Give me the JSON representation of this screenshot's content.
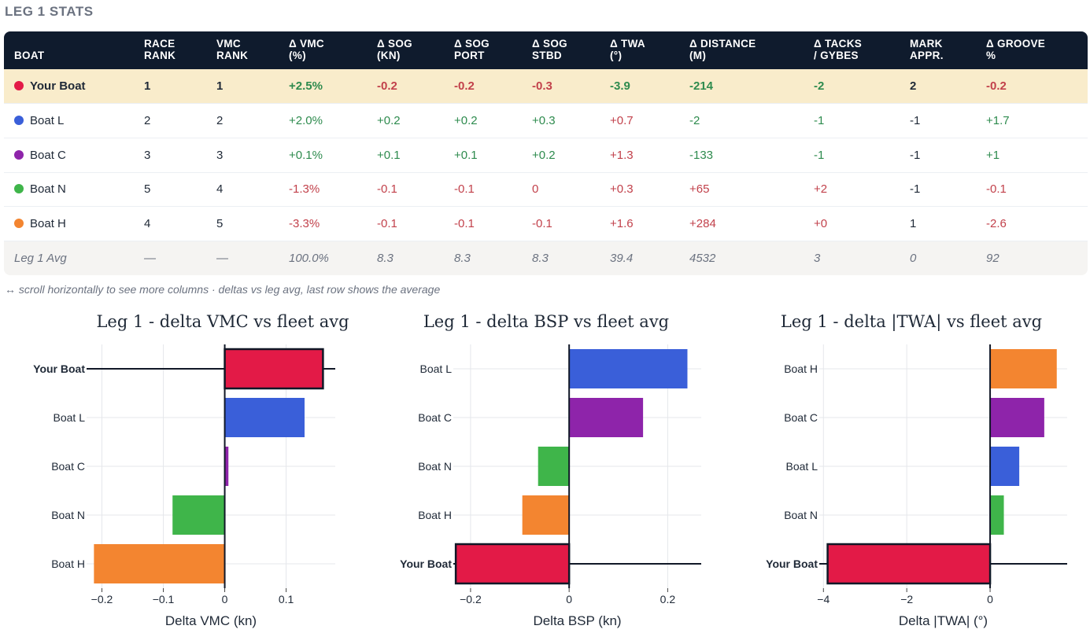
{
  "section_title": "LEG 1 STATS",
  "table": {
    "columns": [
      "BOAT",
      "RACE\nRANK",
      "VMC\nRANK",
      "Δ VMC\n(%)",
      "Δ SOG\n(KN)",
      "Δ SOG\nPORT",
      "Δ SOG\nSTBD",
      "Δ TWA\n(°)",
      "Δ DISTANCE\n(M)",
      "Δ TACKS\n/ GYBES",
      "MARK\nAPPR.",
      "Δ GROOVE\n%"
    ],
    "rows": [
      {
        "boat": "Your Boat",
        "color": "#e31a47",
        "highlight": true,
        "cells": [
          [
            "1",
            "neu"
          ],
          [
            "1",
            "neu"
          ],
          [
            "+2.5%",
            "pos"
          ],
          [
            "-0.2",
            "neg"
          ],
          [
            "-0.2",
            "neg"
          ],
          [
            "-0.3",
            "neg"
          ],
          [
            "-3.9",
            "pos"
          ],
          [
            "-214",
            "pos"
          ],
          [
            "-2",
            "pos"
          ],
          [
            "2",
            "neu"
          ],
          [
            "-0.2",
            "neg"
          ]
        ]
      },
      {
        "boat": "Boat L",
        "color": "#3a5fd9",
        "highlight": false,
        "cells": [
          [
            "2",
            "neu"
          ],
          [
            "2",
            "neu"
          ],
          [
            "+2.0%",
            "pos"
          ],
          [
            "+0.2",
            "pos"
          ],
          [
            "+0.2",
            "pos"
          ],
          [
            "+0.3",
            "pos"
          ],
          [
            "+0.7",
            "neg"
          ],
          [
            "-2",
            "pos"
          ],
          [
            "-1",
            "pos"
          ],
          [
            "-1",
            "neu"
          ],
          [
            "+1.7",
            "pos"
          ]
        ]
      },
      {
        "boat": "Boat C",
        "color": "#8e24aa",
        "highlight": false,
        "cells": [
          [
            "3",
            "neu"
          ],
          [
            "3",
            "neu"
          ],
          [
            "+0.1%",
            "pos"
          ],
          [
            "+0.1",
            "pos"
          ],
          [
            "+0.1",
            "pos"
          ],
          [
            "+0.2",
            "pos"
          ],
          [
            "+1.3",
            "neg"
          ],
          [
            "-133",
            "pos"
          ],
          [
            "-1",
            "pos"
          ],
          [
            "-1",
            "neu"
          ],
          [
            "+1",
            "pos"
          ]
        ]
      },
      {
        "boat": "Boat N",
        "color": "#3fb54a",
        "highlight": false,
        "cells": [
          [
            "5",
            "neu"
          ],
          [
            "4",
            "neu"
          ],
          [
            "-1.3%",
            "neg"
          ],
          [
            "-0.1",
            "neg"
          ],
          [
            "-0.1",
            "neg"
          ],
          [
            "0",
            "neg"
          ],
          [
            "+0.3",
            "neg"
          ],
          [
            "+65",
            "neg"
          ],
          [
            "+2",
            "neg"
          ],
          [
            "-1",
            "neu"
          ],
          [
            "-0.1",
            "neg"
          ]
        ]
      },
      {
        "boat": "Boat H",
        "color": "#f38530",
        "highlight": false,
        "cells": [
          [
            "4",
            "neu"
          ],
          [
            "5",
            "neu"
          ],
          [
            "-3.3%",
            "neg"
          ],
          [
            "-0.1",
            "neg"
          ],
          [
            "-0.1",
            "neg"
          ],
          [
            "-0.1",
            "neg"
          ],
          [
            "+1.6",
            "neg"
          ],
          [
            "+284",
            "neg"
          ],
          [
            "+0",
            "neg"
          ],
          [
            "1",
            "neu"
          ],
          [
            "-2.6",
            "neg"
          ]
        ]
      }
    ],
    "avg_row": {
      "label": "Leg 1 Avg",
      "cells": [
        "—",
        "—",
        "100.0%",
        "8.3",
        "8.3",
        "8.3",
        "39.4",
        "4532",
        "3",
        "0",
        "92"
      ]
    }
  },
  "note": "↔ scroll horizontally to see more columns · deltas vs leg avg, last row shows the average",
  "chart_data": [
    {
      "type": "bar",
      "orientation": "horizontal",
      "title": "Leg 1 - delta VMC vs fleet avg",
      "xlabel": "Delta VMC (kn)",
      "ylabel": "",
      "xlim": [
        -0.225,
        0.18
      ],
      "xticks": [
        -0.2,
        -0.1,
        0,
        0.1
      ],
      "xtick_labels": [
        "−0.2",
        "−0.1",
        "0",
        "0.1"
      ],
      "highlight": "Your Boat",
      "categories": [
        "Your Boat",
        "Boat L",
        "Boat C",
        "Boat N",
        "Boat H"
      ],
      "values": [
        0.16,
        0.13,
        0.006,
        -0.085,
        -0.213
      ],
      "colors": [
        "#e31a47",
        "#3a5fd9",
        "#8e24aa",
        "#3fb54a",
        "#f38530"
      ]
    },
    {
      "type": "bar",
      "orientation": "horizontal",
      "title": "Leg 1 - delta BSP vs fleet avg",
      "xlabel": "Delta BSP (kn)",
      "ylabel": "",
      "xlim": [
        -0.235,
        0.268
      ],
      "xticks": [
        -0.2,
        0,
        0.2
      ],
      "xtick_labels": [
        "−0.2",
        "0",
        "0.2"
      ],
      "highlight": "Your Boat",
      "categories": [
        "Boat L",
        "Boat C",
        "Boat N",
        "Boat H",
        "Your Boat"
      ],
      "values": [
        0.24,
        0.15,
        -0.063,
        -0.095,
        -0.23
      ],
      "colors": [
        "#3a5fd9",
        "#8e24aa",
        "#3fb54a",
        "#f38530",
        "#e31a47"
      ]
    },
    {
      "type": "bar",
      "orientation": "horizontal",
      "title": "Leg 1 - delta |TWA| vs fleet avg",
      "xlabel": "Delta |TWA| (°)",
      "ylabel": "",
      "xlim": [
        -4.1,
        1.85
      ],
      "xticks": [
        -4,
        -2,
        0
      ],
      "xtick_labels": [
        "−4",
        "−2",
        "0"
      ],
      "highlight": "Your Boat",
      "categories": [
        "Boat H",
        "Boat C",
        "Boat L",
        "Boat N",
        "Your Boat"
      ],
      "values": [
        1.6,
        1.3,
        0.7,
        0.33,
        -3.9
      ],
      "colors": [
        "#f38530",
        "#8e24aa",
        "#3a5fd9",
        "#3fb54a",
        "#e31a47"
      ]
    }
  ]
}
